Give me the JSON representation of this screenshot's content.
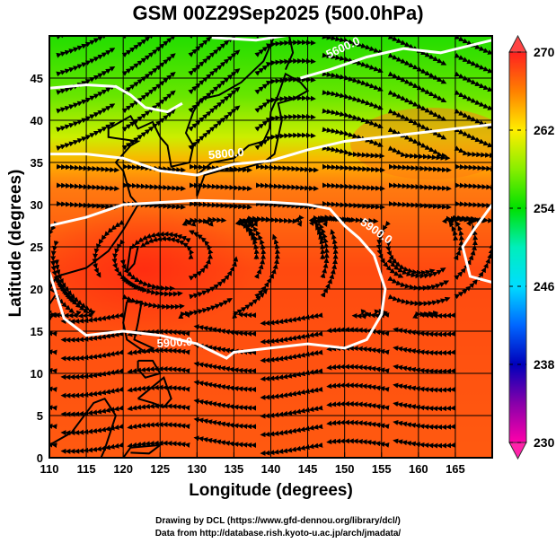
{
  "title": "GSM 00Z29Sep2025 (500.0hPa)",
  "chart_data": {
    "type": "heatmap",
    "title": "GSM 00Z29Sep2025 (500.0hPa)",
    "xlabel": "Longitude (degrees)",
    "ylabel": "Latitude  (degrees)",
    "xlim": [
      110,
      170
    ],
    "ylim": [
      0,
      50
    ],
    "xticks": [
      "110",
      "115",
      "120",
      "125",
      "130",
      "135",
      "140",
      "145",
      "150",
      "155",
      "160",
      "165"
    ],
    "yticks": [
      "0",
      "5",
      "10",
      "15",
      "20",
      "25",
      "30",
      "35",
      "40",
      "45"
    ],
    "grid": true,
    "colorbar": {
      "ticks": [
        "270",
        "262",
        "254",
        "246",
        "238",
        "230"
      ],
      "range": [
        230,
        270
      ],
      "colors": [
        "#ff00aa",
        "#8800aa",
        "#0000bb",
        "#0066ff",
        "#00ddff",
        "#00eebb",
        "#00e000",
        "#88ee00",
        "#ffee00",
        "#ff8000",
        "#ff2020"
      ]
    },
    "contour_labels": [
      "5600.0",
      "5800.0",
      "5900.0",
      "5900.0"
    ]
  },
  "credits": {
    "line1": "Drawing by DCL (https://www.gfd-dennou.org/library/dcl/)",
    "line2": "Data from http://database.rish.kyoto-u.ac.jp/arch/jmadata/"
  }
}
